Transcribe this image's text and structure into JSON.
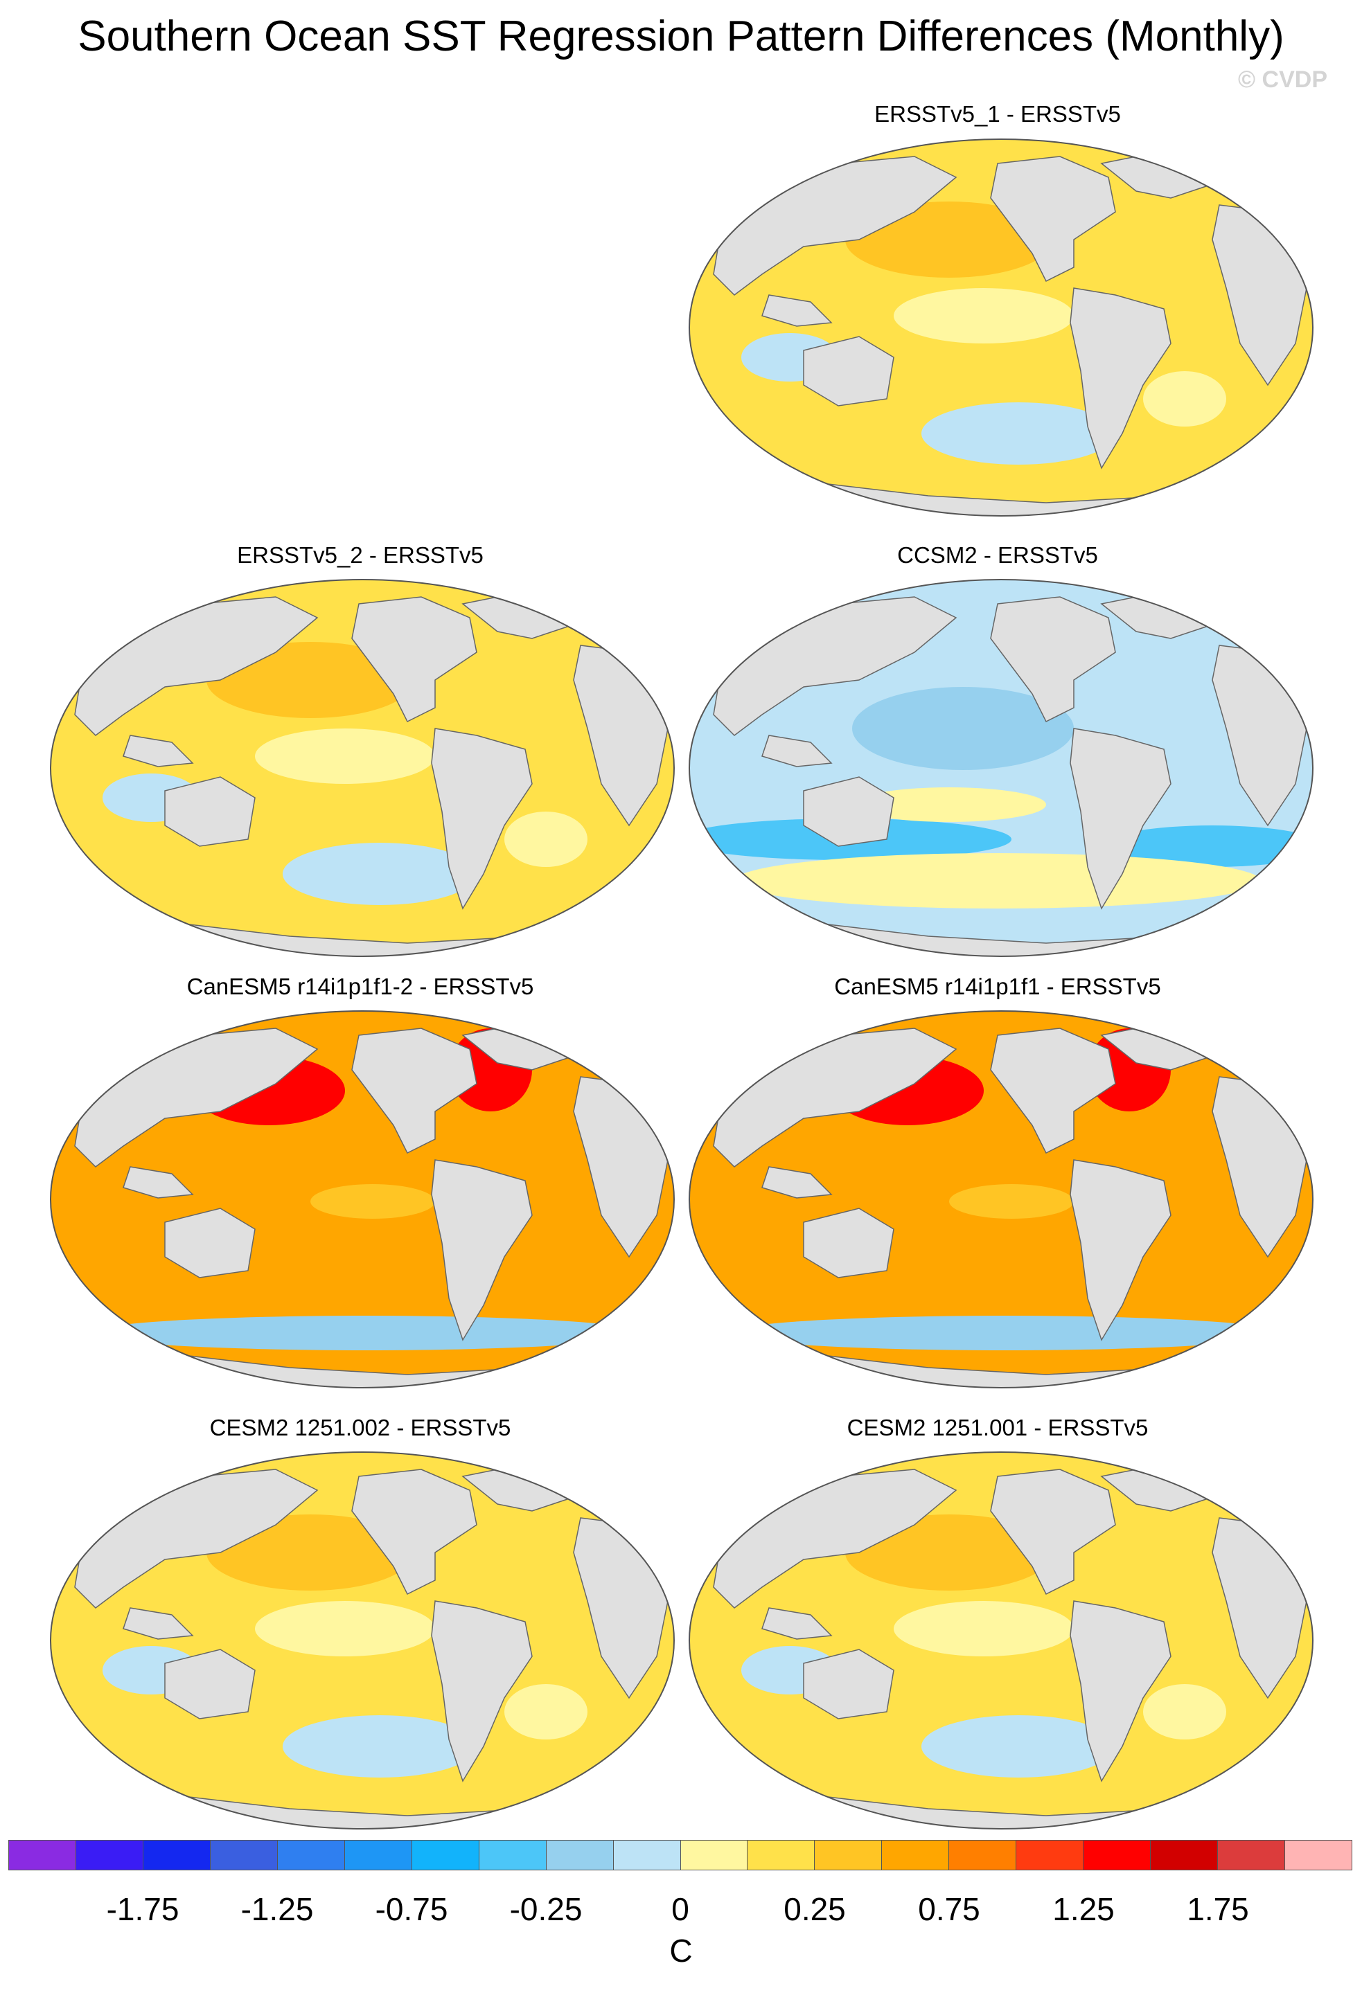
{
  "title": "Southern Ocean SST Regression Pattern Differences (Monthly)",
  "copyright": "© CVDP",
  "panels": [
    {
      "title": "ERSSTv5_1 - ERSSTv5",
      "pattern": "weak-warm"
    },
    {
      "title": "ERSSTv5_2 - ERSSTv5",
      "pattern": "weak-warm"
    },
    {
      "title": "CCSM2 - ERSSTv5",
      "pattern": "cool"
    },
    {
      "title": "CanESM5 r14i1p1f1-2 - ERSSTv5",
      "pattern": "strong-warm"
    },
    {
      "title": "CanESM5 r14i1p1f1 - ERSSTv5",
      "pattern": "strong-warm"
    },
    {
      "title": "CESM2 1251.002 - ERSSTv5",
      "pattern": "weak-warm"
    },
    {
      "title": "CESM2 1251.001 - ERSSTv5",
      "pattern": "weak-warm"
    }
  ],
  "colorbar": {
    "colors": [
      "#8a2be2",
      "#3a1cf5",
      "#1428f0",
      "#3a5fe0",
      "#2f7ff0",
      "#1e96f5",
      "#12b3fb",
      "#4cc6f8",
      "#96d0ee",
      "#bde3f6",
      "#fff7a0",
      "#ffe14a",
      "#ffc524",
      "#ffa600",
      "#ff7f00",
      "#ff3b10",
      "#ff0000",
      "#d20000",
      "#dc3c3c",
      "#ffb4b4"
    ],
    "tick_labels": [
      "-1.75",
      "-1.25",
      "-0.75",
      "-0.25",
      "0",
      "0.25",
      "0.75",
      "1.25",
      "1.75"
    ],
    "unit": "C"
  }
}
